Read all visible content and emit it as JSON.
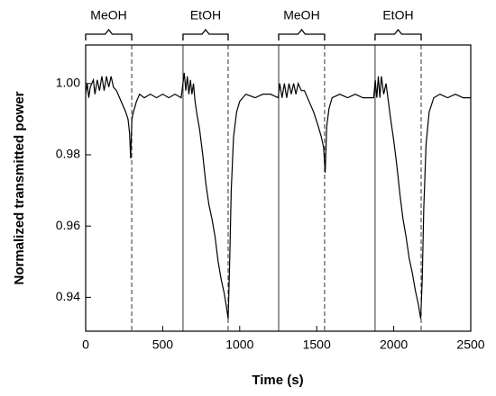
{
  "chart_data": {
    "type": "line",
    "xlabel": "Time (s)",
    "ylabel": "Normalized transmitted power",
    "xlim": [
      0,
      2500
    ],
    "ylim": [
      0.9305,
      1.0108
    ],
    "xticks": [
      0,
      500,
      1000,
      1500,
      2000,
      2500
    ],
    "yticks": [
      0.94,
      0.96,
      0.98,
      {
        "value": 1,
        "label": "1.00"
      }
    ],
    "annotations": [
      {
        "text": "MeOH",
        "x_start": 0,
        "x_end": 299
      },
      {
        "text": "EtOH",
        "x_start": 632,
        "x_end": 925
      },
      {
        "text": "MeOH",
        "x_start": 1253,
        "x_end": 1551
      },
      {
        "text": "EtOH",
        "x_start": 1879,
        "x_end": 2178
      }
    ],
    "vlines": [
      {
        "x": 299,
        "style": "dashed"
      },
      {
        "x": 632,
        "style": "solid"
      },
      {
        "x": 925,
        "style": "dashed"
      },
      {
        "x": 1253,
        "style": "solid"
      },
      {
        "x": 1551,
        "style": "dashed"
      },
      {
        "x": 1879,
        "style": "solid"
      },
      {
        "x": 2178,
        "style": "dashed"
      }
    ],
    "series": [
      {
        "color": "#000000",
        "x": [
          0,
          10,
          20,
          30,
          50,
          60,
          75,
          90,
          105,
          120,
          135,
          150,
          165,
          180,
          200,
          220,
          240,
          260,
          275,
          285,
          292,
          300,
          310,
          330,
          350,
          380,
          420,
          460,
          500,
          540,
          580,
          620,
          640,
          650,
          660,
          670,
          680,
          690,
          700,
          710,
          720,
          740,
          760,
          780,
          800,
          820,
          840,
          860,
          880,
          900,
          915,
          925,
          935,
          945,
          960,
          980,
          1000,
          1040,
          1100,
          1150,
          1200,
          1250,
          1260,
          1275,
          1290,
          1305,
          1320,
          1335,
          1350,
          1365,
          1380,
          1400,
          1420,
          1450,
          1480,
          1510,
          1530,
          1545,
          1555,
          1565,
          1580,
          1600,
          1650,
          1700,
          1750,
          1800,
          1870,
          1880,
          1890,
          1900,
          1910,
          1920,
          1935,
          1950,
          1965,
          1980,
          2000,
          2020,
          2040,
          2060,
          2080,
          2100,
          2120,
          2140,
          2160,
          2175,
          2185,
          2195,
          2210,
          2230,
          2260,
          2300,
          2350,
          2400,
          2450,
          2500
        ],
        "values": [
          0.997,
          1.0,
          0.996,
          0.999,
          1.001,
          0.997,
          1.001,
          0.998,
          1.002,
          0.998,
          1.002,
          0.999,
          1.002,
          0.999,
          0.998,
          0.996,
          0.994,
          0.992,
          0.99,
          0.986,
          0.979,
          0.99,
          0.992,
          0.995,
          0.997,
          0.996,
          0.997,
          0.996,
          0.997,
          0.996,
          0.997,
          0.996,
          1.003,
          0.998,
          1.002,
          0.997,
          1.001,
          0.997,
          1.0,
          0.995,
          0.992,
          0.987,
          0.98,
          0.972,
          0.966,
          0.962,
          0.957,
          0.95,
          0.945,
          0.941,
          0.937,
          0.934,
          0.95,
          0.97,
          0.985,
          0.992,
          0.995,
          0.997,
          0.996,
          0.997,
          0.997,
          0.996,
          1.0,
          0.996,
          1.0,
          0.996,
          1.0,
          0.997,
          1.0,
          0.997,
          1.0,
          0.998,
          0.998,
          0.995,
          0.992,
          0.988,
          0.985,
          0.982,
          0.975,
          0.988,
          0.993,
          0.996,
          0.997,
          0.996,
          0.997,
          0.996,
          0.996,
          1.001,
          0.996,
          1.002,
          0.996,
          1.002,
          0.997,
          1.0,
          0.995,
          0.99,
          0.984,
          0.977,
          0.969,
          0.962,
          0.957,
          0.951,
          0.947,
          0.942,
          0.938,
          0.934,
          0.945,
          0.965,
          0.983,
          0.992,
          0.996,
          0.997,
          0.996,
          0.997,
          0.996,
          0.996
        ]
      }
    ]
  }
}
